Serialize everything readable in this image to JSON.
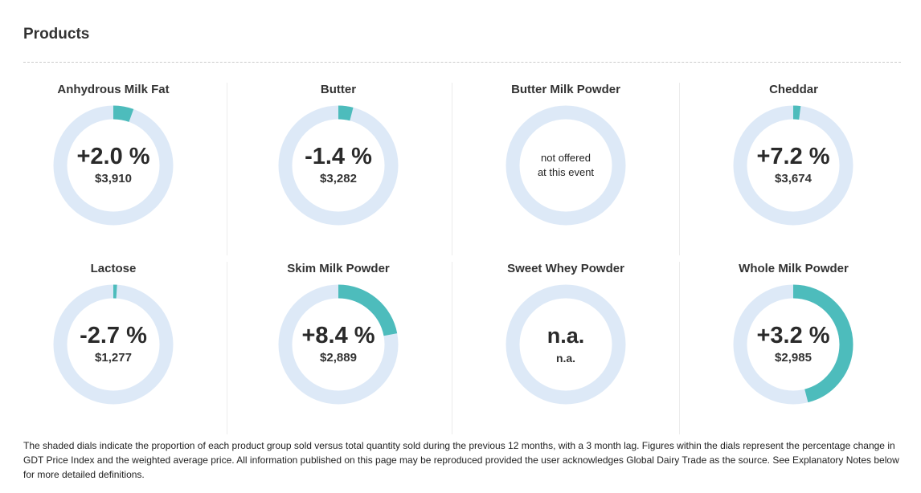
{
  "section": {
    "title": "Products"
  },
  "colors": {
    "ring_track": "#dde9f7",
    "ring_fill": "#4dbcbc"
  },
  "products": [
    {
      "name": "Anhydrous Milk Fat",
      "change": "+2.0 %",
      "price": "$3,910",
      "share": 0.055
    },
    {
      "name": "Butter",
      "change": "-1.4 %",
      "price": "$3,282",
      "share": 0.04
    },
    {
      "name": "Butter Milk Powder",
      "line1": "not offered",
      "line2": "at this event",
      "share": 0
    },
    {
      "name": "Cheddar",
      "change": "+7.2 %",
      "price": "$3,674",
      "share": 0.02
    },
    {
      "name": "Lactose",
      "change": "-2.7 %",
      "price": "$1,277",
      "share": 0.01
    },
    {
      "name": "Skim Milk Powder",
      "change": "+8.4 %",
      "price": "$2,889",
      "share": 0.22
    },
    {
      "name": "Sweet Whey Powder",
      "change": "n.a.",
      "price": "n.a.",
      "share": 0
    },
    {
      "name": "Whole Milk Powder",
      "change": "+3.2 %",
      "price": "$2,985",
      "share": 0.46
    }
  ],
  "footnote": "The shaded dials indicate the proportion of each product group sold versus total quantity sold during the previous 12 months, with a 3 month lag. Figures within the dials represent the percentage change in GDT Price Index and the weighted average price. All information published on this page may be reproduced provided the user acknowledges Global Dairy Trade as the source. See Explanatory Notes below for more detailed definitions."
}
